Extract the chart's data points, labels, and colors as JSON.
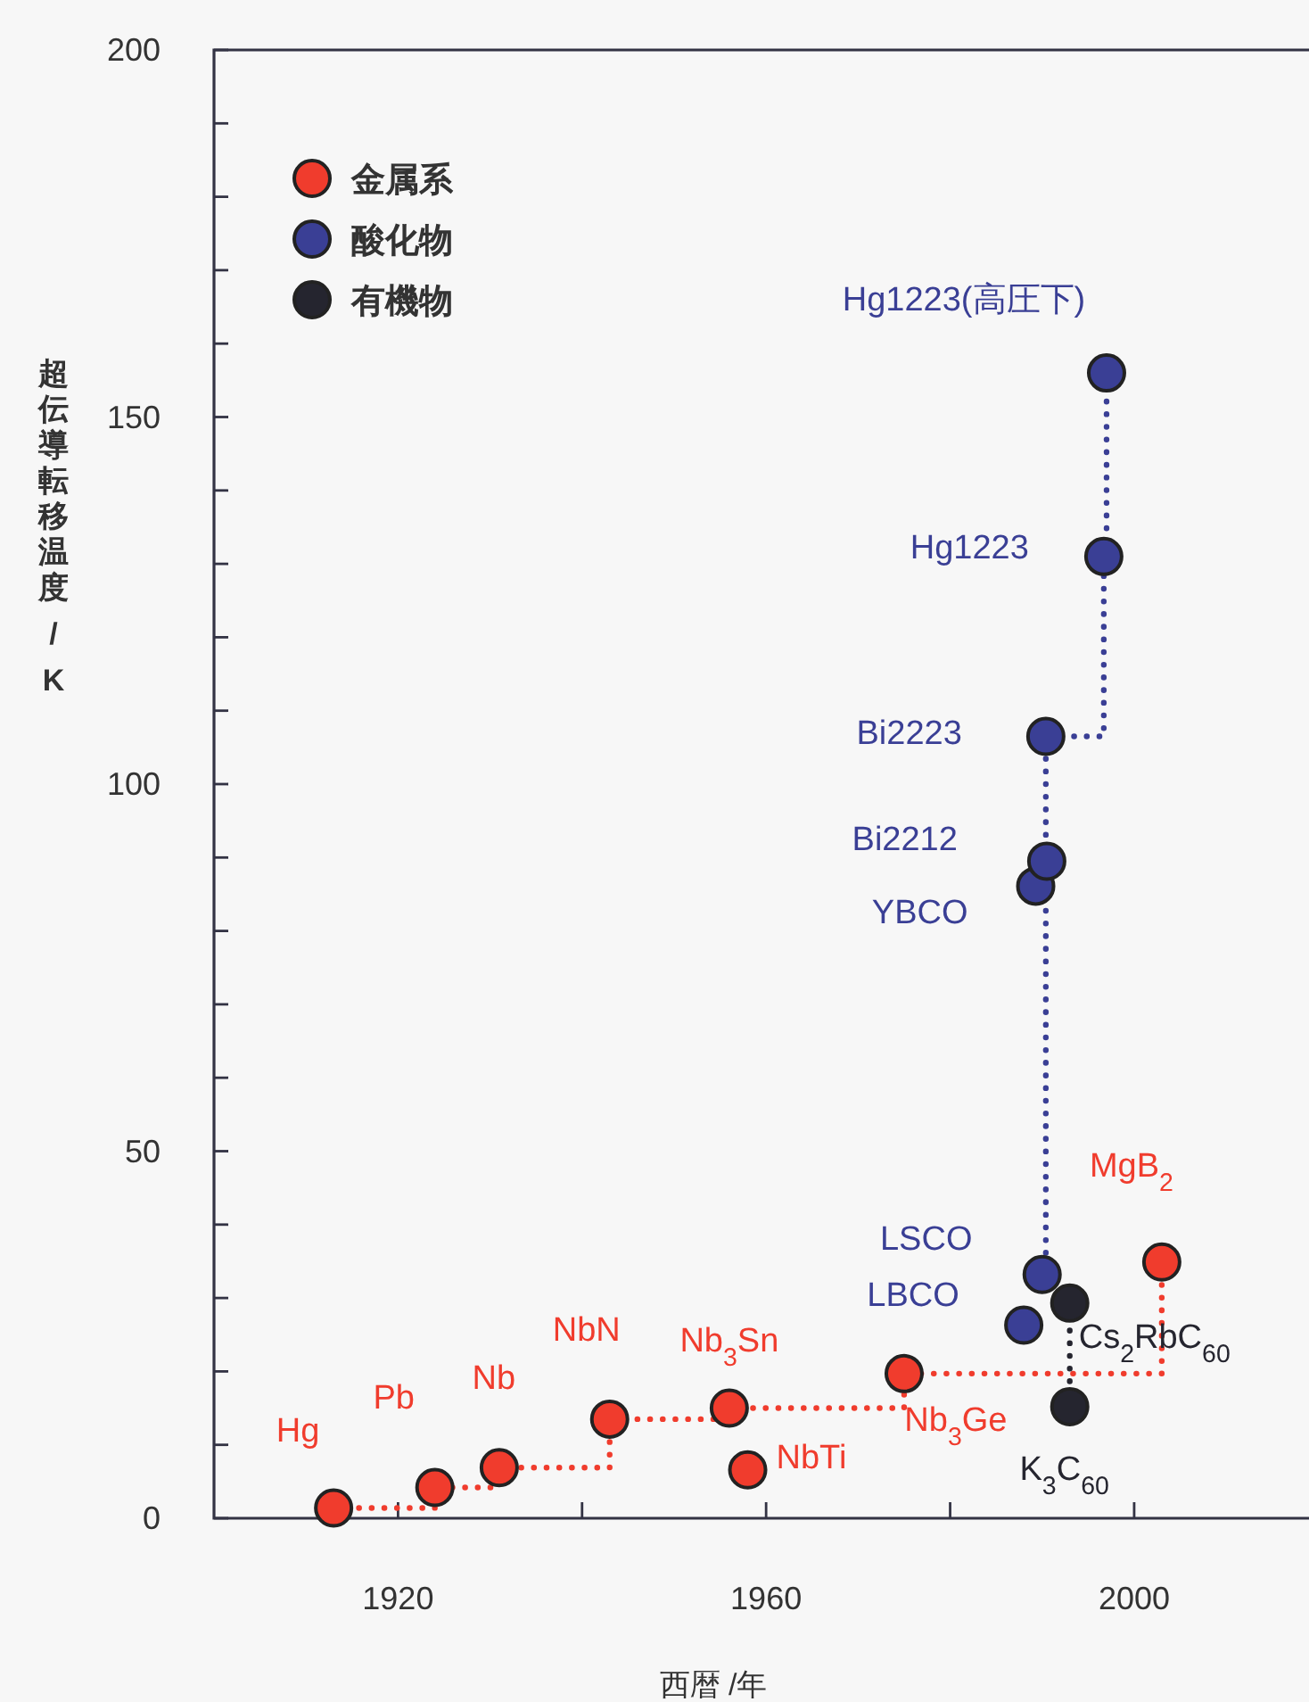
{
  "chart_data": {
    "type": "scatter",
    "xlabel": "西暦 /年",
    "ylabel": "超伝導転移温度 / K",
    "xlim": [
      1900,
      2019
    ],
    "ylim": [
      0,
      200
    ],
    "xticks": [
      1920,
      {
        "value": 1940,
        "label": null
      },
      1960,
      {
        "value": 1980,
        "label": null
      },
      2000
    ],
    "yticks": [
      0,
      {
        "value": 10,
        "label": null
      },
      {
        "value": 20,
        "label": null
      },
      {
        "value": 30,
        "label": null
      },
      {
        "value": 40,
        "label": null
      },
      50,
      {
        "value": 60,
        "label": null
      },
      {
        "value": 70,
        "label": null
      },
      {
        "value": 80,
        "label": null
      },
      {
        "value": 90,
        "label": null
      },
      100,
      {
        "value": 110,
        "label": null
      },
      {
        "value": 120,
        "label": null
      },
      {
        "value": 130,
        "label": null
      },
      {
        "value": 140,
        "label": null
      },
      150,
      {
        "value": 160,
        "label": null
      },
      {
        "value": 170,
        "label": null
      },
      {
        "value": 180,
        "label": null
      },
      {
        "value": 190,
        "label": null
      },
      200
    ],
    "marker": "circle",
    "legend": "top left",
    "grid": false,
    "series": [
      {
        "name": "金属系",
        "color": "#f03c2d",
        "x": [
          1913,
          1924,
          1931,
          1943,
          1956,
          1958,
          1975,
          2003
        ],
        "values": [
          1.4,
          4.2,
          6.9,
          13.5,
          15,
          6.6,
          19.7,
          34.9
        ]
      },
      {
        "name": "酸化物",
        "color": "#3a3f95",
        "x": [
          1988,
          1990,
          1989.3,
          1990.5,
          1990.4,
          1996.7,
          1997
        ],
        "values": [
          26.3,
          33.2,
          86.1,
          89.5,
          106.5,
          131,
          156
        ]
      },
      {
        "name": "有機物",
        "color": "#25252f",
        "x": [
          1993,
          1993
        ],
        "values": [
          29.3,
          15.2
        ]
      },
      {
        "type": "step",
        "color": "#f03c2d",
        "line_style": "dotted",
        "marker": "none",
        "x": [
          1913,
          1924,
          1931,
          1943,
          1956,
          1975,
          2003
        ],
        "values": [
          1.4,
          4.2,
          6.9,
          13.5,
          15,
          19.7,
          34.9
        ]
      },
      {
        "type": "step",
        "color": "#3a3f95",
        "line_style": "dotted",
        "marker": "none",
        "x": [
          1990,
          1990.4,
          1996.7,
          1997
        ],
        "values": [
          33.2,
          106.5,
          131,
          156
        ]
      },
      {
        "type": "step",
        "color": "#25252f",
        "line_style": "dotted",
        "marker": "none",
        "x": [
          1993,
          1993
        ],
        "values": [
          15.2,
          29.3
        ]
      }
    ],
    "annotations": [
      {
        "text": "Hg",
        "x": 1913,
        "y": 1.4
      },
      {
        "text": "Pb",
        "x": 1924,
        "y": 4.2
      },
      {
        "text": "Nb",
        "x": 1931,
        "y": 6.9
      },
      {
        "text": "NbN",
        "x": 1943,
        "y": 13.5
      },
      {
        "text": "Nb$_{3}$Sn",
        "x": 1956,
        "y": 15
      },
      {
        "text": "NbTi",
        "x": 1958,
        "y": 6.6
      },
      {
        "text": "Nb$_{3}$Ge",
        "x": 1975,
        "y": 19.7
      },
      {
        "text": "MgB$_{2}$",
        "x": 2003,
        "y": 34.9
      },
      {
        "text": "LBCO",
        "x": 1988,
        "y": 26.3
      },
      {
        "text": "LSCO",
        "x": 1990,
        "y": 33.2
      },
      {
        "text": "YBCO",
        "x": 1989.3,
        "y": 86.1
      },
      {
        "text": "Bi2212",
        "x": 1990.5,
        "y": 89.5
      },
      {
        "text": "Bi2223",
        "x": 1990.4,
        "y": 106.5
      },
      {
        "text": "Hg1223",
        "x": 1996.7,
        "y": 131
      },
      {
        "text": "Hg1223(高圧下)",
        "x": 1997,
        "y": 156
      },
      {
        "text": "Cs$_{2}$RbC$_{60}$",
        "x": 1993,
        "y": 29.3
      },
      {
        "text": "K$_{3}$C$_{60}$",
        "x": 1993,
        "y": 15.2
      }
    ]
  }
}
